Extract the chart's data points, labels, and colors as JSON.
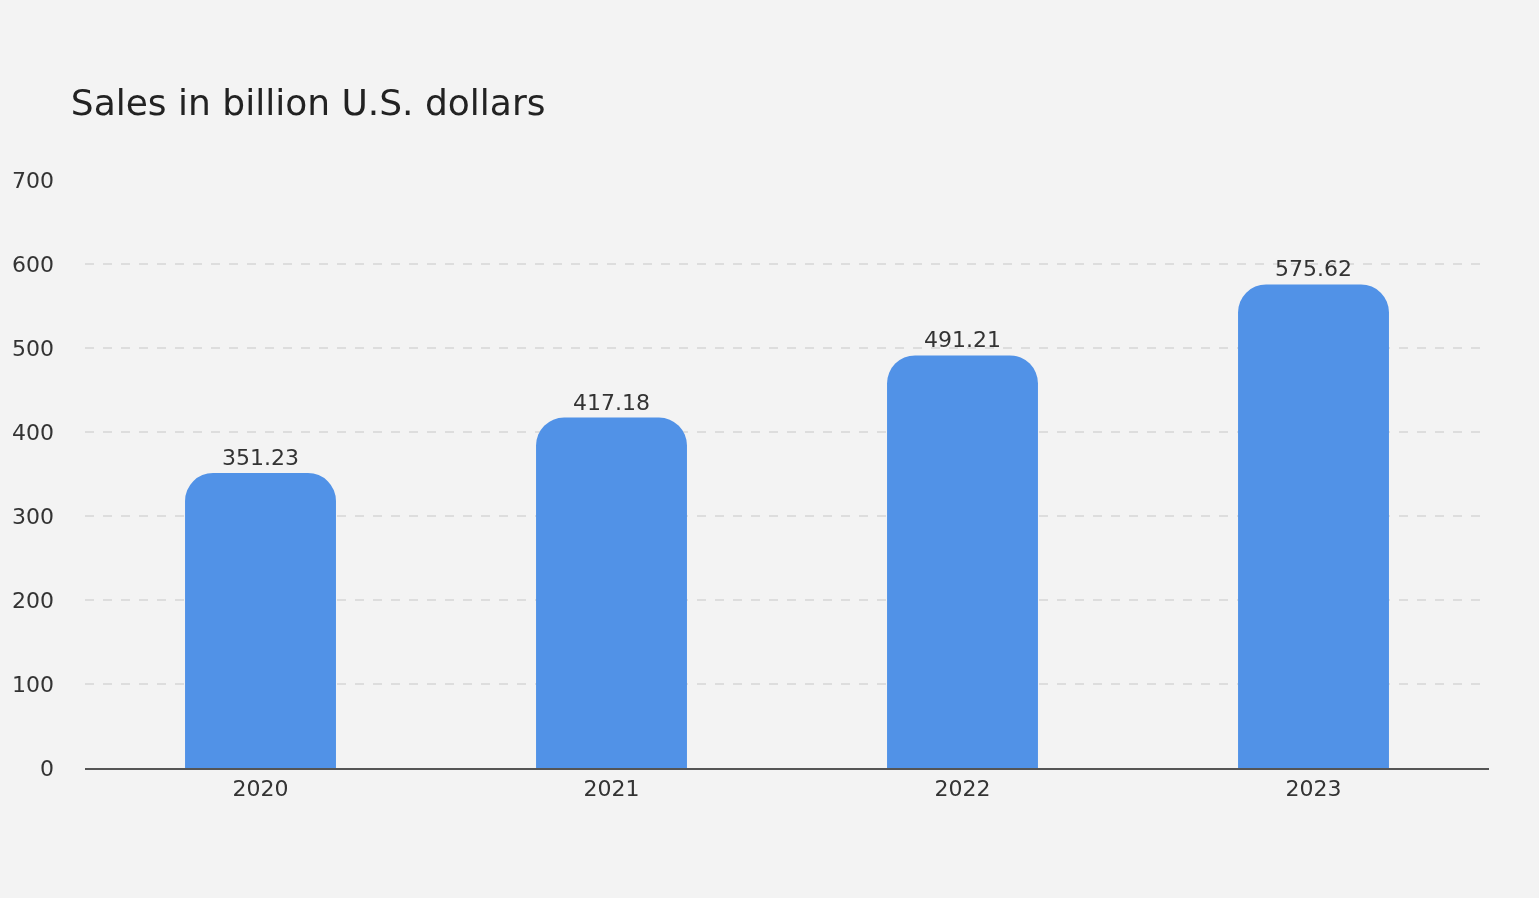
{
  "chart_data": {
    "type": "bar",
    "title": "Sales in billion U.S. dollars",
    "categories": [
      "2020",
      "2021",
      "2022",
      "2023"
    ],
    "values": [
      351.23,
      417.18,
      491.21,
      575.62
    ],
    "color": "#5192e7",
    "data_labels": true,
    "ylim": [
      0,
      700
    ],
    "yticks": [
      0,
      100,
      200,
      300,
      400,
      500,
      600,
      700
    ],
    "grid": "y"
  }
}
